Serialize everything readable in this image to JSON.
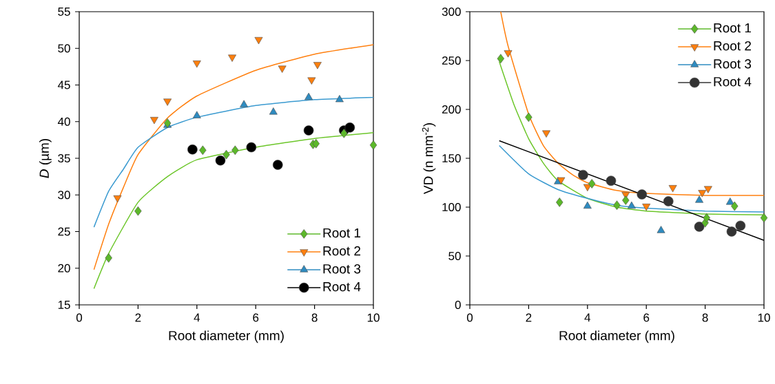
{
  "chart_data": [
    {
      "type": "scatter",
      "xlabel": "Root diameter (mm)",
      "ylabel": "*D* (µm)",
      "xlim": [
        0,
        10
      ],
      "ylim": [
        15,
        55
      ],
      "xticks": [
        0,
        2,
        4,
        6,
        8,
        10
      ],
      "yticks": [
        15,
        20,
        25,
        30,
        35,
        40,
        45,
        50,
        55
      ],
      "legend": "bottom right",
      "series": [
        {
          "type": "line",
          "color": "#6cc62a",
          "marker": "none",
          "x": [
            0.5,
            1,
            2,
            3,
            4,
            6,
            8,
            10
          ],
          "values": [
            17.2,
            22,
            29,
            32.5,
            34.8,
            36.5,
            37.7,
            38.5
          ]
        },
        {
          "type": "line",
          "color": "#ff7f0e",
          "marker": "none",
          "x": [
            0.5,
            1,
            1.5,
            2,
            3,
            4,
            6,
            8,
            10
          ],
          "values": [
            19.8,
            26,
            31,
            35.5,
            40.5,
            43.5,
            47,
            49.2,
            50.5
          ]
        },
        {
          "type": "line",
          "color": "#3a9ad0",
          "marker": "none",
          "x": [
            0.5,
            1,
            1.5,
            2,
            3,
            4,
            6,
            8,
            10
          ],
          "values": [
            25.6,
            30.5,
            33.5,
            36.5,
            39.2,
            40.6,
            42.2,
            43,
            43.3
          ]
        },
        {
          "name": "Root 1",
          "color": "#5cb82a",
          "marker": "diamond",
          "x": [
            1.0,
            2.0,
            3.0,
            4.2,
            5.0,
            5.3,
            7.95,
            8.05,
            9.0,
            10.0
          ],
          "values": [
            21.4,
            27.8,
            39.8,
            36.1,
            35.5,
            36.1,
            36.9,
            37.0,
            38.4,
            36.8
          ]
        },
        {
          "name": "Root 2",
          "color": "#ff7f0e",
          "marker": "triangle-down",
          "x": [
            1.3,
            2.55,
            3.0,
            4.0,
            5.2,
            6.1,
            6.9,
            7.9,
            8.1
          ],
          "values": [
            29.6,
            40.3,
            42.8,
            48.0,
            48.8,
            51.2,
            47.3,
            45.7,
            47.8
          ]
        },
        {
          "name": "Root 3",
          "color": "#2e8bc0",
          "marker": "triangle",
          "x": [
            3.0,
            4.0,
            5.6,
            6.6,
            7.8,
            8.85
          ],
          "values": [
            39.5,
            40.8,
            42.3,
            41.3,
            43.3,
            43.0
          ]
        },
        {
          "name": "Root 4",
          "color": "#000000",
          "marker": "circle",
          "x": [
            3.85,
            4.8,
            5.85,
            6.75,
            7.8,
            9.0,
            9.2
          ],
          "values": [
            36.2,
            34.7,
            36.5,
            34.1,
            38.8,
            38.8,
            39.2
          ]
        }
      ]
    },
    {
      "type": "scatter",
      "xlabel": "Root diameter (mm)",
      "ylabel": "VD (n mm$^{-2}$)",
      "xlim": [
        0,
        10
      ],
      "ylim": [
        0,
        300
      ],
      "xticks": [
        0,
        2,
        4,
        6,
        8,
        10
      ],
      "yticks": [
        0,
        50,
        100,
        150,
        200,
        250,
        300
      ],
      "legend": "top right",
      "series": [
        {
          "type": "line",
          "color": "#6cc62a",
          "marker": "none",
          "x": [
            1,
            1.5,
            2,
            2.5,
            3,
            4,
            5,
            6,
            8,
            10
          ],
          "values": [
            249,
            205,
            170,
            145,
            127,
            109,
            100,
            96,
            93,
            92
          ]
        },
        {
          "type": "line",
          "color": "#ff7f0e",
          "marker": "none",
          "x": [
            1.05,
            1.3,
            2,
            2.5,
            3,
            3.5,
            4,
            5,
            6,
            8,
            10
          ],
          "values": [
            300,
            265,
            195,
            163,
            145,
            133,
            125,
            117,
            114,
            112,
            112
          ]
        },
        {
          "type": "line",
          "color": "#3a9ad0",
          "marker": "none",
          "x": [
            1,
            2,
            3,
            4,
            5,
            6,
            8,
            10
          ],
          "values": [
            163,
            134,
            118,
            109,
            102,
            99,
            96,
            95
          ]
        },
        {
          "type": "line",
          "color": "#000000",
          "marker": "none",
          "x": [
            1,
            10
          ],
          "values": [
            168,
            66
          ]
        },
        {
          "name": "Root 1",
          "color": "#5cb82a",
          "marker": "diamond",
          "x": [
            1.05,
            2.0,
            3.05,
            4.15,
            5.0,
            5.3,
            8.0,
            8.05,
            9.0,
            10.0
          ],
          "values": [
            252,
            192,
            105,
            124,
            102,
            107,
            84,
            89,
            101,
            89
          ]
        },
        {
          "name": "Root 2",
          "color": "#ff7f0e",
          "marker": "triangle-down",
          "x": [
            1.3,
            2.6,
            3.1,
            4.0,
            5.3,
            6.0,
            6.9,
            7.9,
            8.1
          ],
          "values": [
            258,
            176,
            128,
            121,
            113,
            101,
            120,
            115,
            119
          ]
        },
        {
          "name": "Root 3",
          "color": "#2e8bc0",
          "marker": "triangle",
          "x": [
            3.0,
            4.0,
            5.5,
            6.5,
            7.8,
            8.85
          ],
          "values": [
            126,
            101,
            101,
            76,
            107,
            105
          ]
        },
        {
          "name": "Root 4",
          "color": "#333333",
          "marker": "circle",
          "x": [
            3.85,
            4.8,
            5.85,
            6.75,
            7.8,
            8.9,
            9.2
          ],
          "values": [
            133,
            127,
            113,
            106,
            80,
            75,
            81
          ]
        }
      ]
    }
  ]
}
